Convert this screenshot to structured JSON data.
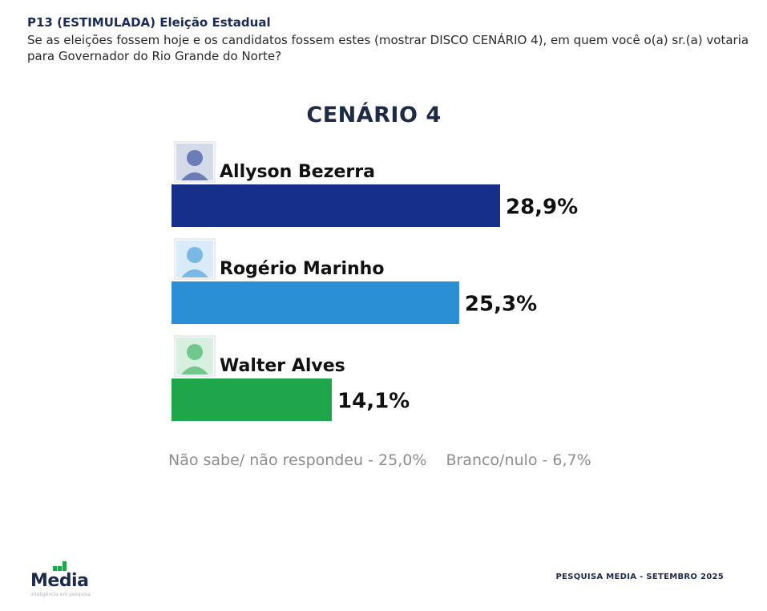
{
  "header": {
    "question_code": "P13 (ESTIMULADA) Eleição Estadual",
    "question_text": "Se as eleições fossem hoje e os candidatos fossem estes (mostrar DISCO CENÁRIO 4), em quem você o(a) sr.(a) votaria para Governador do Rio Grande do Norte?"
  },
  "chart_data": {
    "type": "bar",
    "orientation": "horizontal",
    "title": "CENÁRIO 4",
    "categories": [
      "Allyson Bezerra",
      "Rogério Marinho",
      "Walter Alves"
    ],
    "values": [
      28.9,
      25.3,
      14.1
    ],
    "value_labels": [
      "28,9%",
      "25,3%",
      "14,1%"
    ],
    "colors": [
      "#16308a",
      "#2b8fd6",
      "#1fa64a"
    ],
    "unit": "%",
    "grid": false,
    "legend": "none"
  },
  "footnotes": {
    "undecided": "Não sabe/ não respondeu - 25,0%",
    "blank_null": "Branco/nulo - 6,7%"
  },
  "footer": {
    "logo_text": "Media",
    "logo_tagline": "inteligência em pesquisa",
    "source": "PESQUISA MEDIA - SETEMBRO 2025"
  }
}
